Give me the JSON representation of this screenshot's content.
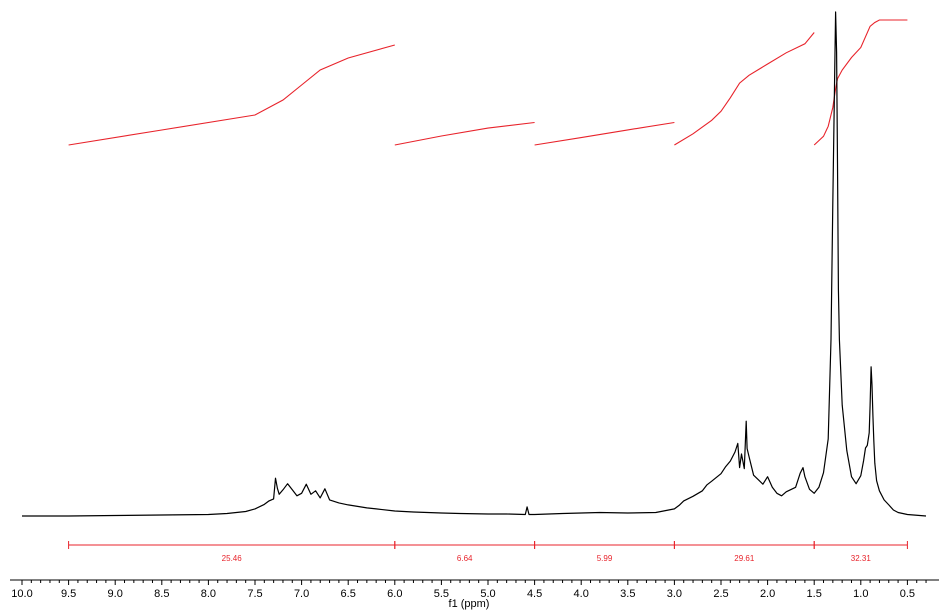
{
  "colors": {
    "spectrum": "#000000",
    "integral": "#e8232b",
    "axis": "#000000",
    "background": "#ffffff"
  },
  "chart_data": {
    "type": "line",
    "title": "",
    "xlabel": "f1 (ppm)",
    "ylabel": "",
    "xlim": [
      10.0,
      0.5
    ],
    "x_axis_reversed": true,
    "grid": false,
    "legend": "none",
    "x_ticks": [
      10.0,
      9.5,
      9.0,
      8.5,
      8.0,
      7.5,
      7.0,
      6.5,
      6.0,
      5.5,
      5.0,
      4.5,
      4.0,
      3.5,
      3.0,
      2.5,
      2.0,
      1.5,
      1.0,
      0.5
    ],
    "x_tick_labels": [
      "10.0",
      "9.5",
      "9.0",
      "8.5",
      "8.0",
      "7.5",
      "7.0",
      "6.5",
      "6.0",
      "5.5",
      "5.0",
      "4.5",
      "4.0",
      "3.5",
      "3.0",
      "2.5",
      "2.0",
      "1.5",
      "1.0",
      "0.5"
    ],
    "integrals": [
      {
        "from": 9.5,
        "to": 6.0,
        "value": 25.46,
        "label": "25.46"
      },
      {
        "from": 6.0,
        "to": 4.5,
        "value": 6.64,
        "label": "6.64"
      },
      {
        "from": 4.5,
        "to": 3.0,
        "value": 5.99,
        "label": "5.99"
      },
      {
        "from": 3.0,
        "to": 1.5,
        "value": 29.61,
        "label": "29.61"
      },
      {
        "from": 1.5,
        "to": 0.5,
        "value": 32.31,
        "label": "32.31"
      }
    ],
    "series": [
      {
        "x": [
          10.0,
          9.5,
          9.0,
          8.5,
          8.0,
          7.8,
          7.6,
          7.5,
          7.4,
          7.35,
          7.3,
          7.28,
          7.26,
          7.24,
          7.2,
          7.15,
          7.1,
          7.05,
          7.0,
          6.95,
          6.9,
          6.85,
          6.8,
          6.75,
          6.7,
          6.6,
          6.5,
          6.4,
          6.3,
          6.2,
          6.0,
          5.8,
          5.5,
          5.3,
          5.0,
          4.8,
          4.6,
          4.58,
          4.56,
          4.5,
          4.2,
          4.0,
          3.8,
          3.5,
          3.2,
          3.0,
          2.95,
          2.9,
          2.8,
          2.7,
          2.65,
          2.6,
          2.5,
          2.45,
          2.4,
          2.35,
          2.32,
          2.3,
          2.28,
          2.25,
          2.23,
          2.22,
          2.2,
          2.15,
          2.1,
          2.05,
          2.0,
          1.95,
          1.9,
          1.85,
          1.8,
          1.7,
          1.65,
          1.62,
          1.6,
          1.55,
          1.5,
          1.45,
          1.4,
          1.35,
          1.32,
          1.3,
          1.28,
          1.27,
          1.26,
          1.25,
          1.24,
          1.23,
          1.2,
          1.15,
          1.1,
          1.05,
          1.0,
          0.97,
          0.95,
          0.93,
          0.91,
          0.9,
          0.89,
          0.88,
          0.87,
          0.86,
          0.85,
          0.83,
          0.8,
          0.75,
          0.7,
          0.65,
          0.6,
          0.5,
          0.3
        ],
        "y": [
          0.0,
          0.0,
          0.1,
          0.2,
          0.3,
          0.5,
          0.9,
          1.4,
          2.3,
          3.0,
          3.4,
          7.5,
          5.5,
          4.3,
          5.2,
          6.4,
          5.2,
          4.0,
          4.5,
          6.3,
          4.3,
          5.0,
          3.6,
          5.4,
          3.2,
          2.6,
          2.2,
          1.9,
          1.6,
          1.4,
          1.0,
          0.8,
          0.6,
          0.5,
          0.4,
          0.4,
          0.3,
          1.8,
          0.3,
          0.3,
          0.5,
          0.6,
          0.7,
          0.6,
          0.7,
          1.4,
          2.1,
          3.0,
          3.9,
          5.0,
          6.2,
          6.9,
          8.4,
          9.8,
          10.9,
          12.7,
          14.4,
          9.6,
          12.3,
          9.4,
          18.8,
          13.4,
          11.8,
          8.1,
          7.2,
          6.3,
          7.8,
          5.7,
          4.5,
          4.0,
          4.8,
          5.7,
          8.5,
          9.6,
          7.8,
          5.3,
          4.5,
          5.7,
          8.6,
          15.3,
          35.0,
          62.0,
          88.0,
          100.0,
          92.0,
          70.0,
          45.0,
          35.0,
          22.0,
          13.0,
          7.8,
          6.4,
          8.0,
          11.0,
          13.5,
          14.0,
          16.5,
          22.0,
          29.6,
          26.0,
          20.0,
          15.0,
          10.5,
          7.0,
          5.0,
          3.2,
          2.2,
          1.2,
          0.7,
          0.3,
          0.0
        ]
      }
    ],
    "integral_curves": [
      {
        "x": [
          9.5,
          8.5,
          7.5,
          7.2,
          7.0,
          6.8,
          6.5,
          6.0
        ],
        "y": [
          0.0,
          0.15,
          0.3,
          0.45,
          0.6,
          0.75,
          0.87,
          1.0
        ]
      },
      {
        "x": [
          6.0,
          5.5,
          5.0,
          4.5
        ],
        "y": [
          0.0,
          0.4,
          0.75,
          1.0
        ]
      },
      {
        "x": [
          4.5,
          4.0,
          3.5,
          3.0
        ],
        "y": [
          0.0,
          0.33,
          0.67,
          1.0
        ]
      },
      {
        "x": [
          3.0,
          2.8,
          2.6,
          2.5,
          2.4,
          2.3,
          2.2,
          2.0,
          1.8,
          1.6,
          1.5
        ],
        "y": [
          0.0,
          0.1,
          0.22,
          0.3,
          0.42,
          0.55,
          0.62,
          0.72,
          0.82,
          0.9,
          1.0
        ]
      },
      {
        "x": [
          1.5,
          1.4,
          1.35,
          1.3,
          1.27,
          1.25,
          1.2,
          1.1,
          1.0,
          0.9,
          0.85,
          0.8,
          0.6,
          0.5
        ],
        "y": [
          0.0,
          0.07,
          0.15,
          0.3,
          0.45,
          0.53,
          0.6,
          0.7,
          0.78,
          0.95,
          0.98,
          1.0,
          1.0,
          1.0
        ]
      }
    ]
  }
}
